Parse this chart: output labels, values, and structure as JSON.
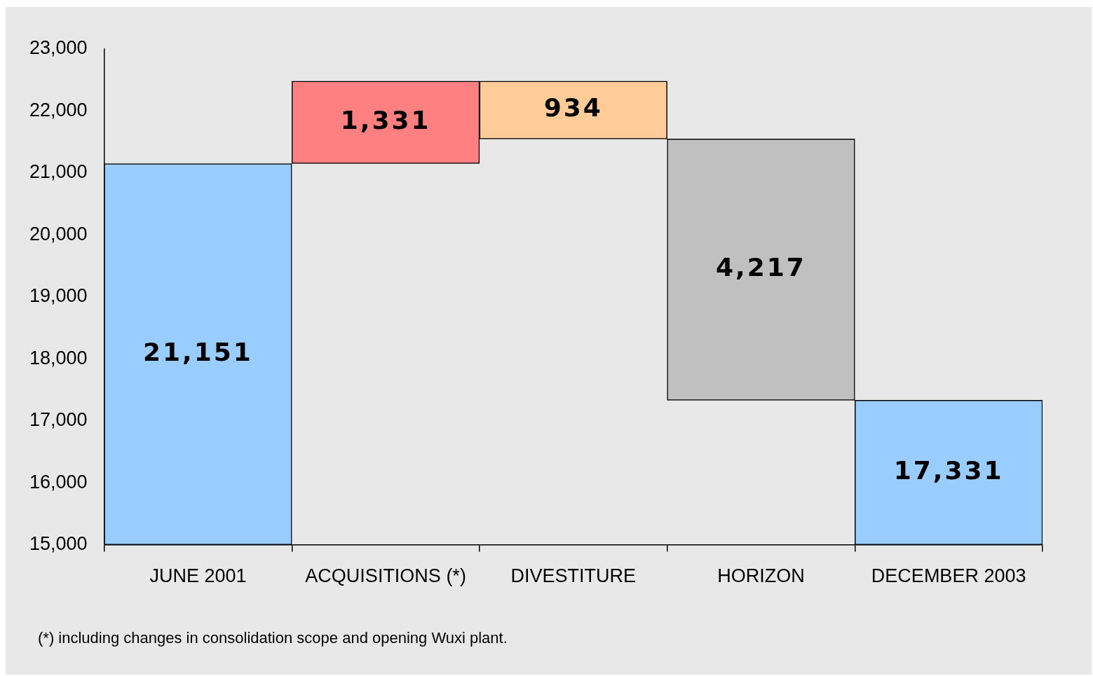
{
  "chart_data": {
    "type": "bar",
    "categories": [
      "JUNE 2001",
      "ACQUISITIONS (*)",
      "DIVESTITURE",
      "HORIZON",
      "DECEMBER 2003"
    ],
    "base": [
      15000,
      21151,
      21548,
      17331,
      15000
    ],
    "values": [
      6151,
      1331,
      934,
      4217,
      2331
    ],
    "colors": [
      "#99ccff",
      "#ff8080",
      "#ffcc99",
      "#c0c0c0",
      "#99ccff"
    ],
    "value_labels": [
      "21,151",
      "1,331",
      "934",
      "4,217",
      "17,331"
    ],
    "ylim": [
      15000,
      23000
    ],
    "yticks": [
      {
        "value": 15000,
        "label": "15,000"
      },
      {
        "value": 16000,
        "label": "16,000"
      },
      {
        "value": 17000,
        "label": "17,000"
      },
      {
        "value": 18000,
        "label": "18,000"
      },
      {
        "value": 19000,
        "label": "19,000"
      },
      {
        "value": 20000,
        "label": "20,000"
      },
      {
        "value": 21000,
        "label": "21,000"
      },
      {
        "value": 22000,
        "label": "22,000"
      },
      {
        "value": 23000,
        "label": "23,000"
      }
    ],
    "grid": false,
    "legend": false,
    "annotations": [
      "(*) including changes in consolidation scope and opening Wuxi plant."
    ]
  }
}
